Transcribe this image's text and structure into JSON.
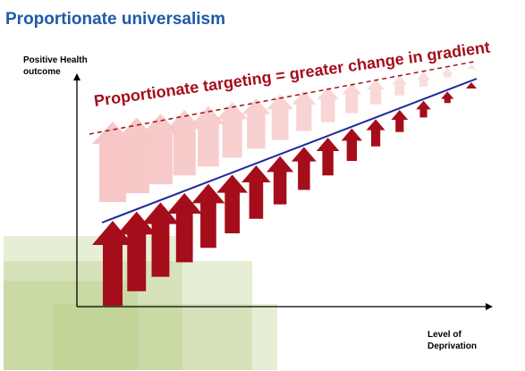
{
  "title": "Proportionate universalism",
  "y_axis_label": "Positive Health outcome",
  "x_axis_label": "Level of Deprivation",
  "headline": "Proportionate targeting = greater change in gradient",
  "colors": {
    "title": "#1f5aa6",
    "headline": "#a50d1a",
    "dark_arrow": "#a50d1a",
    "light_arrow": "#f7c6c6",
    "gradient_line": "#1e2a9a",
    "dashed_line": "#a50d1a",
    "green_wash": "#b0c878"
  },
  "arrow_count": 16
}
